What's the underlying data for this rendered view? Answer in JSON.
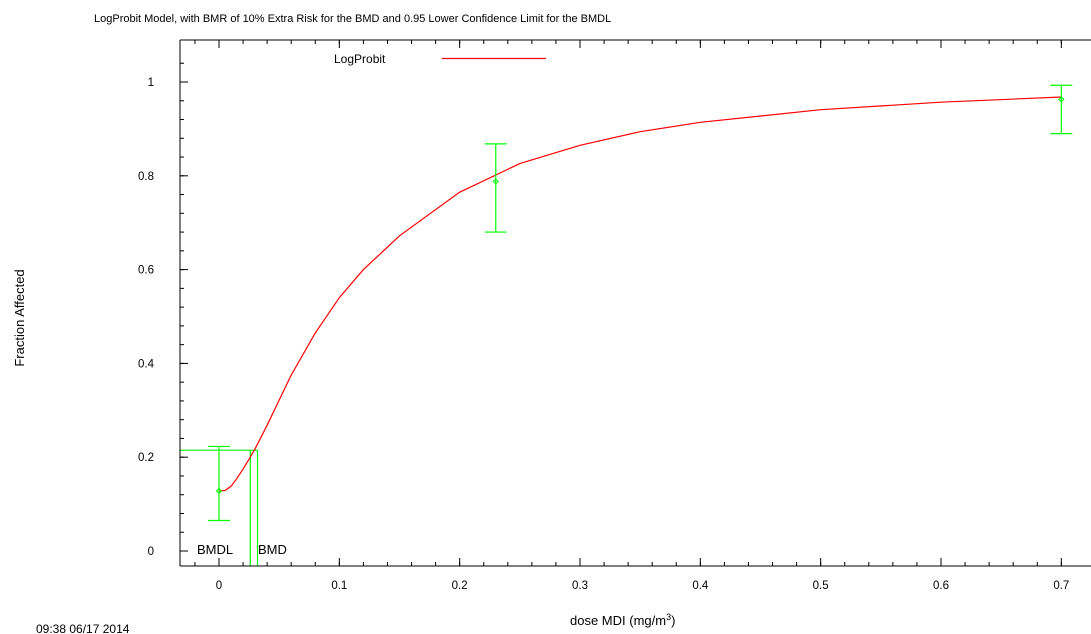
{
  "chart_data": {
    "type": "line",
    "title": "LogProbit Model, with BMR of 10% Extra Risk for the BMD and 0.95 Lower Confidence Limit for the BMDL",
    "xlabel": "dose MDI (mg/m",
    "xlabel_sup": "3",
    "xlabel_suffix": ")",
    "ylabel": "Fraction Affected",
    "xlim": [
      -0.03,
      0.71
    ],
    "ylim": [
      -0.04,
      1.09
    ],
    "x_ticks": [
      0,
      0.1,
      0.2,
      0.3,
      0.4,
      0.5,
      0.6,
      0.7
    ],
    "x_tick_labels": [
      "0",
      "0.1",
      "0.2",
      "0.3",
      "0.4",
      "0.5",
      "0.6",
      "0.7"
    ],
    "y_ticks": [
      0,
      0.2,
      0.4,
      0.6,
      0.8,
      1
    ],
    "y_tick_labels": [
      "0",
      "0.2",
      "0.4",
      "0.6",
      "0.8",
      "1"
    ],
    "grid": false,
    "legend_position": "top-center",
    "series": [
      {
        "name": "LogProbit",
        "color": "#ff0000",
        "kind": "model_curve",
        "x": [
          0,
          0.005,
          0.01,
          0.015,
          0.02,
          0.025,
          0.03,
          0.04,
          0.05,
          0.06,
          0.08,
          0.1,
          0.12,
          0.15,
          0.2,
          0.25,
          0.3,
          0.35,
          0.4,
          0.5,
          0.6,
          0.7
        ],
        "y": [
          0.128,
          0.129,
          0.138,
          0.155,
          0.175,
          0.196,
          0.218,
          0.268,
          0.322,
          0.375,
          0.465,
          0.54,
          0.6,
          0.672,
          0.765,
          0.826,
          0.865,
          0.894,
          0.914,
          0.941,
          0.957,
          0.968
        ]
      },
      {
        "kind": "observed_with_ci",
        "color": "#00ff00",
        "x": [
          0,
          0.23,
          0.7
        ],
        "y": [
          0.128,
          0.788,
          0.963
        ],
        "ci_low": [
          0.065,
          0.68,
          0.89
        ],
        "ci_high": [
          0.223,
          0.868,
          0.993
        ]
      }
    ],
    "bmr_level": 0.215,
    "bmdl": 0.026,
    "bmd": 0.032,
    "bmdl_label": "BMDL",
    "bmd_label": "BMD"
  },
  "timestamp": "09:38 06/17 2014"
}
